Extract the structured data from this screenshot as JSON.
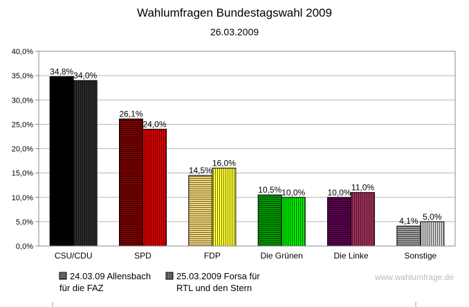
{
  "chart_data": {
    "type": "bar",
    "title": "Wahlumfragen Bundestagswahl 2009",
    "subtitle": "26.03.2009",
    "categories": [
      "CSU/CDU",
      "SPD",
      "FDP",
      "Die Grünen",
      "Die Linke",
      "Sonstige"
    ],
    "ylim": [
      0,
      40
    ],
    "yticks": [
      "0,0%",
      "5,0%",
      "10,0%",
      "15,0%",
      "20,0%",
      "25,0%",
      "30,0%",
      "35,0%",
      "40,0%"
    ],
    "grid": true,
    "series": [
      {
        "name": "24.03.09 Allensbach für die FAZ",
        "name_lines": [
          "24.03.09 Allensbach",
          "für die FAZ"
        ],
        "values": [
          34.8,
          26.1,
          14.5,
          10.5,
          10.0,
          4.1
        ],
        "labels": [
          "34,8%",
          "26,1%",
          "14,5%",
          "10,5%",
          "10,0%",
          "4,1%"
        ],
        "pattern": "horizontal-stripes"
      },
      {
        "name": "25.03.2009 Forsa für RTL und den Stern",
        "name_lines": [
          "25.03.2009 Forsa für",
          "RTL und den Stern"
        ],
        "values": [
          34.0,
          24.0,
          16.0,
          10.0,
          11.0,
          5.0
        ],
        "labels": [
          "34,0%",
          "24,0%",
          "16,0%",
          "10,0%",
          "11,0%",
          "5,0%"
        ],
        "pattern": "vertical-stripes"
      }
    ],
    "colors": {
      "series_1": [
        "#000000",
        "#7a0000",
        "#f5d77a",
        "#009a00",
        "#5a0050",
        "#9c9c9c"
      ],
      "series_2": [
        "#2b2b2b",
        "#e00000",
        "#ffff33",
        "#00ee00",
        "#a0305a",
        "#cfcfcf"
      ]
    },
    "legend": "bottom-left"
  },
  "watermark": "www.wahlumfrage.de"
}
